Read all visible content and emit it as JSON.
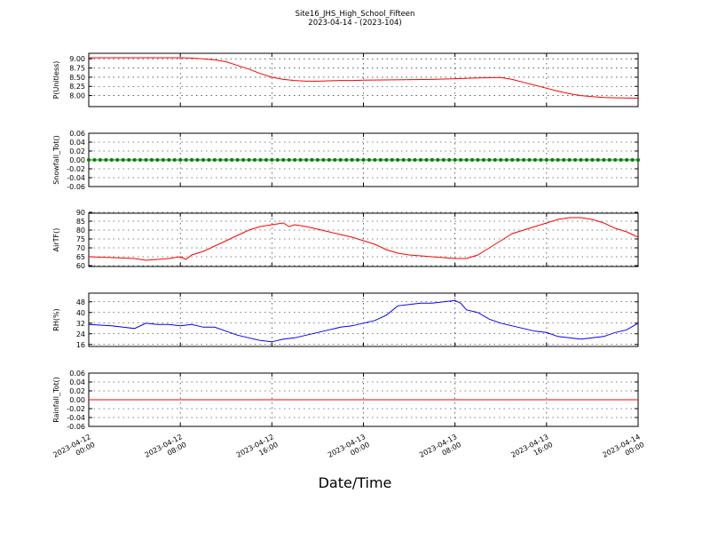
{
  "figure": {
    "title": "Site16_JHS_High_School_Fifteen",
    "subtitle": "2023-04-14 - (2023-104)",
    "xlabel": "Date/Time",
    "x_ticks": [
      "2023-04-12\n00:00",
      "2023-04-12\n08:00",
      "2023-04-12\n16:00",
      "2023-04-13\n00:00",
      "2023-04-13\n08:00",
      "2023-04-13\n16:00",
      "2023-04-14\n00:00"
    ],
    "x_range": [
      "2023-04-12 00:00",
      "2023-04-14 00:00"
    ]
  },
  "chart_data": [
    {
      "type": "line",
      "ylabel": "P(Unitless)",
      "ylim": [
        7.7,
        9.15
      ],
      "yticks": [
        "9.00",
        "8.75",
        "8.50",
        "8.25",
        "8.00"
      ],
      "ytick_values": [
        9.0,
        8.75,
        8.5,
        8.25,
        8.0
      ],
      "grid": true,
      "color": "#ff0000",
      "marker": "none",
      "series": [
        {
          "x_hours": [
            0,
            8,
            9,
            10,
            11,
            12,
            13,
            14,
            15,
            16,
            17,
            18,
            19,
            20,
            21,
            22,
            23,
            24,
            30,
            32,
            34,
            36,
            37,
            38,
            39,
            40,
            41,
            42,
            43,
            44,
            45,
            46,
            48
          ],
          "values": [
            9.03,
            9.03,
            9.02,
            9.0,
            8.97,
            8.92,
            8.82,
            8.72,
            8.6,
            8.5,
            8.44,
            8.41,
            8.39,
            8.39,
            8.4,
            8.41,
            8.41,
            8.42,
            8.44,
            8.46,
            8.48,
            8.49,
            8.44,
            8.36,
            8.28,
            8.2,
            8.12,
            8.05,
            8.0,
            7.97,
            7.95,
            7.94,
            7.93
          ]
        }
      ]
    },
    {
      "type": "line",
      "ylabel": "Snowfall_Tot()",
      "ylim": [
        -0.06,
        0.06
      ],
      "yticks": [
        "0.06",
        "0.04",
        "0.02",
        "0.00",
        "-0.02",
        "-0.04",
        "-0.06"
      ],
      "ytick_values": [
        0.06,
        0.04,
        0.02,
        0.0,
        -0.02,
        -0.04,
        -0.06
      ],
      "grid": true,
      "color": "#008000",
      "marker": "dots",
      "series": [
        {
          "x_hours": [
            0,
            48
          ],
          "values": [
            0.0,
            0.0
          ]
        }
      ]
    },
    {
      "type": "line",
      "ylabel": "AirTF()",
      "ylim": [
        59.5,
        89.5
      ],
      "yticks": [
        "90",
        "85",
        "80",
        "75",
        "70",
        "65",
        "60"
      ],
      "ytick_values": [
        90,
        85,
        80,
        75,
        70,
        65,
        60
      ],
      "grid": true,
      "color": "#ff0000",
      "marker": "none",
      "series": [
        {
          "x_hours": [
            0,
            2,
            4,
            5,
            6,
            7,
            8,
            8.5,
            9,
            10,
            11,
            12,
            13,
            14,
            15,
            16,
            17,
            17.5,
            18,
            19,
            20,
            21,
            22,
            23,
            24,
            25,
            26,
            27,
            28,
            29,
            30,
            31,
            32,
            33,
            34,
            35,
            36,
            37,
            38,
            39,
            40,
            41,
            42,
            43,
            44,
            45,
            46,
            47,
            48
          ],
          "values": [
            65,
            64.5,
            64,
            63,
            63.5,
            64,
            65,
            63.5,
            66,
            68,
            71,
            74,
            77,
            80,
            82,
            83,
            84,
            82,
            83,
            82,
            80.5,
            79,
            77.5,
            76,
            74,
            72,
            69,
            67,
            66,
            65.5,
            65,
            64.5,
            64,
            64,
            66,
            70,
            74,
            78,
            80,
            82,
            84,
            86,
            87,
            87,
            86,
            84,
            81,
            79,
            76
          ]
        }
      ]
    },
    {
      "type": "line",
      "ylabel": "RH(%)",
      "ylim": [
        14.5,
        54.5
      ],
      "yticks": [
        "48",
        "40",
        "32",
        "24",
        "16"
      ],
      "ytick_values": [
        48,
        40,
        32,
        24,
        16
      ],
      "grid": true,
      "color": "#0000ff",
      "marker": "none",
      "series": [
        {
          "x_hours": [
            0,
            1,
            2,
            3,
            4,
            5,
            6,
            7,
            8,
            9,
            10,
            11,
            12,
            13,
            14,
            15,
            16,
            17,
            18,
            19,
            20,
            21,
            22,
            23,
            24,
            25,
            26,
            27,
            28,
            29,
            30,
            31,
            32,
            32.5,
            33,
            34,
            35,
            36,
            37,
            38,
            39,
            40,
            41,
            42,
            43,
            44,
            45,
            46,
            47,
            48
          ],
          "values": [
            31,
            30.5,
            30,
            29,
            28,
            32,
            31,
            31,
            30,
            31,
            29,
            29,
            26,
            23,
            21,
            19,
            18,
            20,
            21,
            23,
            25,
            27,
            29,
            30,
            32,
            34,
            38,
            45,
            46,
            47,
            47,
            48,
            49,
            47,
            42,
            40,
            35,
            32,
            30,
            28,
            26,
            25,
            22,
            21,
            20,
            21,
            22,
            25,
            27,
            32
          ]
        }
      ]
    },
    {
      "type": "line",
      "ylabel": "Rainfall_Tot()",
      "ylim": [
        -0.06,
        0.06
      ],
      "yticks": [
        "0.06",
        "0.04",
        "0.02",
        "0.00",
        "-0.02",
        "-0.04",
        "-0.06"
      ],
      "ytick_values": [
        0.06,
        0.04,
        0.02,
        0.0,
        -0.02,
        -0.04,
        -0.06
      ],
      "grid": true,
      "color": "#ff0000",
      "marker": "none",
      "series": [
        {
          "x_hours": [
            0,
            48
          ],
          "values": [
            0.0,
            0.0
          ]
        }
      ]
    }
  ]
}
